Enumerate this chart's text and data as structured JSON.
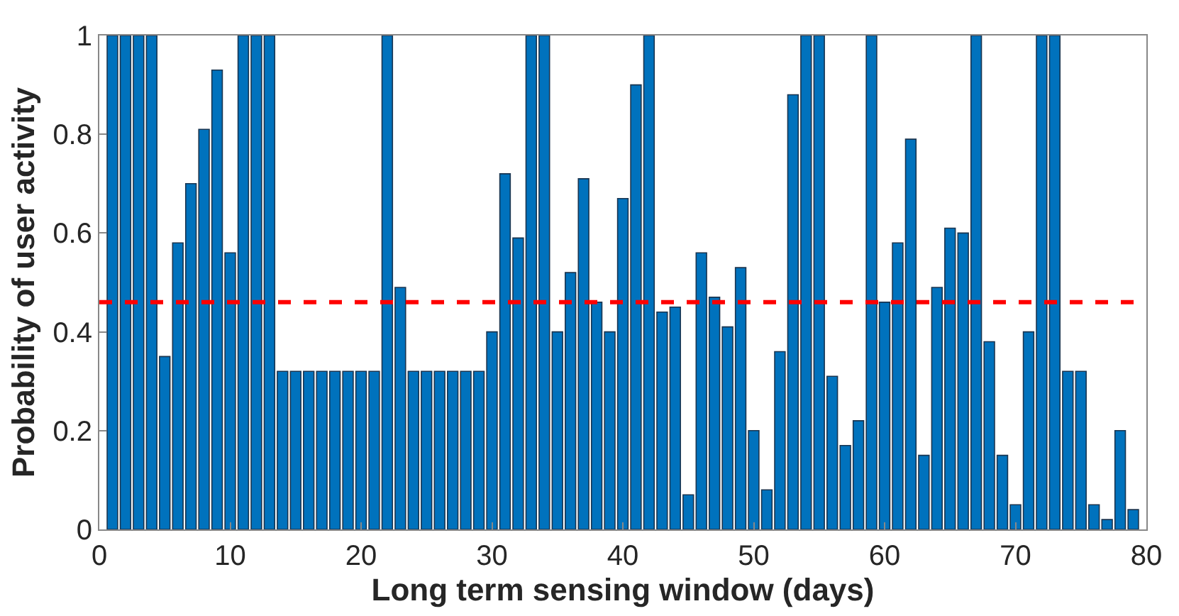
{
  "chart_data": {
    "type": "bar",
    "xlabel": "Long term sensing window (days)",
    "ylabel": "Probability of user activity",
    "x": [
      1,
      2,
      3,
      4,
      5,
      6,
      7,
      8,
      9,
      10,
      11,
      12,
      13,
      14,
      15,
      16,
      17,
      18,
      19,
      20,
      21,
      22,
      23,
      24,
      25,
      26,
      27,
      28,
      29,
      30,
      31,
      32,
      33,
      34,
      35,
      36,
      37,
      38,
      39,
      40,
      41,
      42,
      43,
      44,
      45,
      46,
      47,
      48,
      49,
      50,
      51,
      52,
      53,
      54,
      55,
      56,
      57,
      58,
      59,
      60,
      61,
      62,
      63,
      64,
      65,
      66,
      67,
      68,
      69,
      70,
      71,
      72,
      73,
      74,
      75,
      76,
      77,
      78,
      79
    ],
    "values": [
      1,
      1,
      1,
      1,
      0.35,
      0.58,
      0.7,
      0.81,
      0.93,
      0.56,
      1,
      1,
      1,
      0.32,
      0.32,
      0.32,
      0.32,
      0.32,
      0.32,
      0.32,
      0.32,
      1,
      0.49,
      0.32,
      0.32,
      0.32,
      0.32,
      0.32,
      0.32,
      0.4,
      0.72,
      0.59,
      1,
      1,
      0.4,
      0.52,
      0.71,
      0.46,
      0.4,
      0.67,
      0.9,
      1,
      0.44,
      0.45,
      0.07,
      0.56,
      0.47,
      0.41,
      0.53,
      0.2,
      0.08,
      0.36,
      0.88,
      1,
      1,
      0.31,
      0.17,
      0.22,
      1,
      0.46,
      0.58,
      0.79,
      0.15,
      0.49,
      0.61,
      0.6,
      1,
      0.38,
      0.15,
      0.05,
      0.4,
      1,
      1,
      0.32,
      0.32,
      0.05,
      0.02,
      0.2,
      0.04
    ],
    "color": "#0072bd",
    "xlim": [
      0,
      80
    ],
    "xticks": [
      0,
      10,
      20,
      30,
      40,
      50,
      60,
      70,
      80
    ],
    "ylim": [
      0,
      1
    ],
    "yticks": [
      0,
      0.2,
      0.4,
      0.6,
      0.8,
      1
    ],
    "ref_lines": [
      {
        "axis": "y",
        "value": 0.46,
        "color": "#ff0000",
        "line_style": "dashed"
      }
    ]
  }
}
